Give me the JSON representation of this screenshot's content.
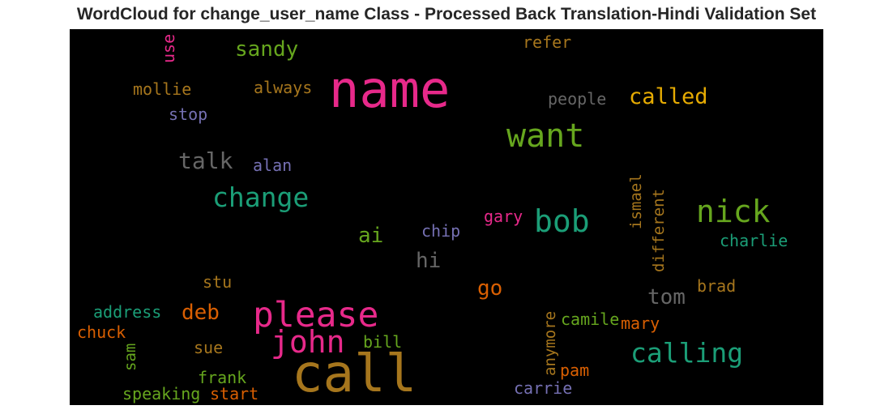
{
  "chart_data": {
    "type": "wordcloud",
    "title": "WordCloud for change_user_name Class - Processed Back Translation-Hindi Validation Set",
    "background": "#000000",
    "words": [
      {
        "text": "name",
        "color": "#e7298a"
      },
      {
        "text": "call",
        "color": "#a6761d"
      },
      {
        "text": "please",
        "color": "#e7298a"
      },
      {
        "text": "want",
        "color": "#66a61e"
      },
      {
        "text": "john",
        "color": "#e7298a"
      },
      {
        "text": "nick",
        "color": "#66a61e"
      },
      {
        "text": "bob",
        "color": "#1b9e77"
      },
      {
        "text": "calling",
        "color": "#1b9e77"
      },
      {
        "text": "change",
        "color": "#1b9e77"
      },
      {
        "text": "called",
        "color": "#e6ab02"
      },
      {
        "text": "talk",
        "color": "#666666"
      },
      {
        "text": "sandy",
        "color": "#66a61e"
      },
      {
        "text": "tom",
        "color": "#666666"
      },
      {
        "text": "deb",
        "color": "#d95f02"
      },
      {
        "text": "go",
        "color": "#d95f02"
      },
      {
        "text": "hi",
        "color": "#666666"
      },
      {
        "text": "ai",
        "color": "#66a61e"
      },
      {
        "text": "people",
        "color": "#666666"
      },
      {
        "text": "always",
        "color": "#a6761d"
      },
      {
        "text": "mollie",
        "color": "#a6761d"
      },
      {
        "text": "refer",
        "color": "#a6761d"
      },
      {
        "text": "stop",
        "color": "#7570b3"
      },
      {
        "text": "use",
        "color": "#e7298a"
      },
      {
        "text": "alan",
        "color": "#7570b3"
      },
      {
        "text": "gary",
        "color": "#e7298a"
      },
      {
        "text": "chip",
        "color": "#7570b3"
      },
      {
        "text": "ismael",
        "color": "#a6761d"
      },
      {
        "text": "different",
        "color": "#a6761d"
      },
      {
        "text": "charlie",
        "color": "#1b9e77"
      },
      {
        "text": "brad",
        "color": "#a6761d"
      },
      {
        "text": "stu",
        "color": "#a6761d"
      },
      {
        "text": "address",
        "color": "#1b9e77"
      },
      {
        "text": "chuck",
        "color": "#d95f02"
      },
      {
        "text": "sam",
        "color": "#66a61e"
      },
      {
        "text": "sue",
        "color": "#a6761d"
      },
      {
        "text": "bill",
        "color": "#66a61e"
      },
      {
        "text": "anymore",
        "color": "#a6761d"
      },
      {
        "text": "camile",
        "color": "#66a61e"
      },
      {
        "text": "mary",
        "color": "#d95f02"
      },
      {
        "text": "pam",
        "color": "#d95f02"
      },
      {
        "text": "carrie",
        "color": "#7570b3"
      },
      {
        "text": "frank",
        "color": "#66a61e"
      },
      {
        "text": "speaking",
        "color": "#66a61e"
      },
      {
        "text": "start",
        "color": "#d95f02"
      }
    ]
  }
}
